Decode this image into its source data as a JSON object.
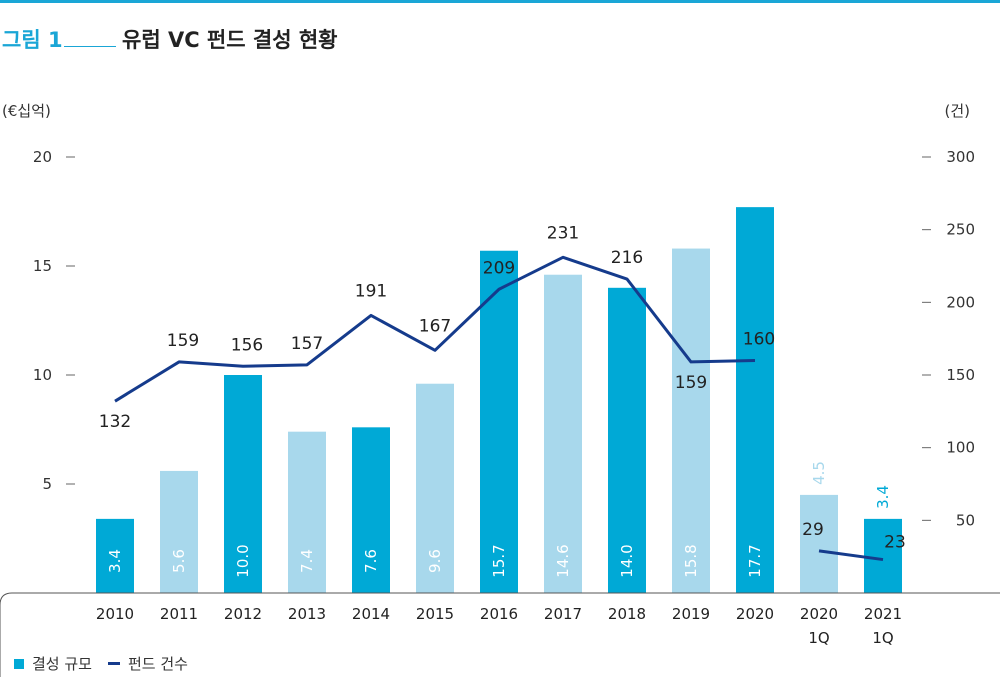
{
  "figure": {
    "label": "그림 1",
    "title": "유럽 VC 펀드 결성 현황"
  },
  "chart_data": {
    "type": "bar",
    "categories": [
      "2010",
      "2011",
      "2012",
      "2013",
      "2014",
      "2015",
      "2016",
      "2017",
      "2018",
      "2019",
      "2020",
      "2020\n1Q",
      "2021\n1Q"
    ],
    "series": [
      {
        "name": "결성 규모",
        "type": "bar",
        "axis": "left",
        "values": [
          3.4,
          5.6,
          10.0,
          7.4,
          7.6,
          9.6,
          15.7,
          14.6,
          14.0,
          15.8,
          17.7,
          4.5,
          3.4
        ],
        "labels": [
          "3.4",
          "5.6",
          "10.0",
          "7.4",
          "7.6",
          "9.6",
          "15.7",
          "14.6",
          "14.0",
          "15.8",
          "17.7",
          "4.5",
          "3.4"
        ]
      },
      {
        "name": "펀드 건수",
        "type": "line",
        "axis": "right",
        "values": [
          132,
          159,
          156,
          157,
          191,
          167,
          209,
          231,
          216,
          159,
          160,
          29,
          23
        ],
        "labels": [
          "132",
          "159",
          "156",
          "157",
          "191",
          "167",
          "209",
          "231",
          "216",
          "159",
          "160",
          "29",
          "23"
        ]
      }
    ],
    "y_left": {
      "unit": "(€십억)",
      "ylim": [
        0,
        20
      ],
      "ticks": [
        5,
        10,
        15,
        20
      ]
    },
    "y_right": {
      "unit": "(건)",
      "ylim": [
        0,
        300
      ],
      "ticks": [
        50,
        100,
        150,
        200,
        250,
        300
      ]
    },
    "grid": false,
    "legend": {
      "placement": "bottom-left"
    },
    "colors": {
      "bar_dark": "#00a9d6",
      "bar_light": "#a8d8ec",
      "line": "#153b8c",
      "label_light_text": "#a8d8ec",
      "label_dark_text": "#00a9d6"
    }
  }
}
